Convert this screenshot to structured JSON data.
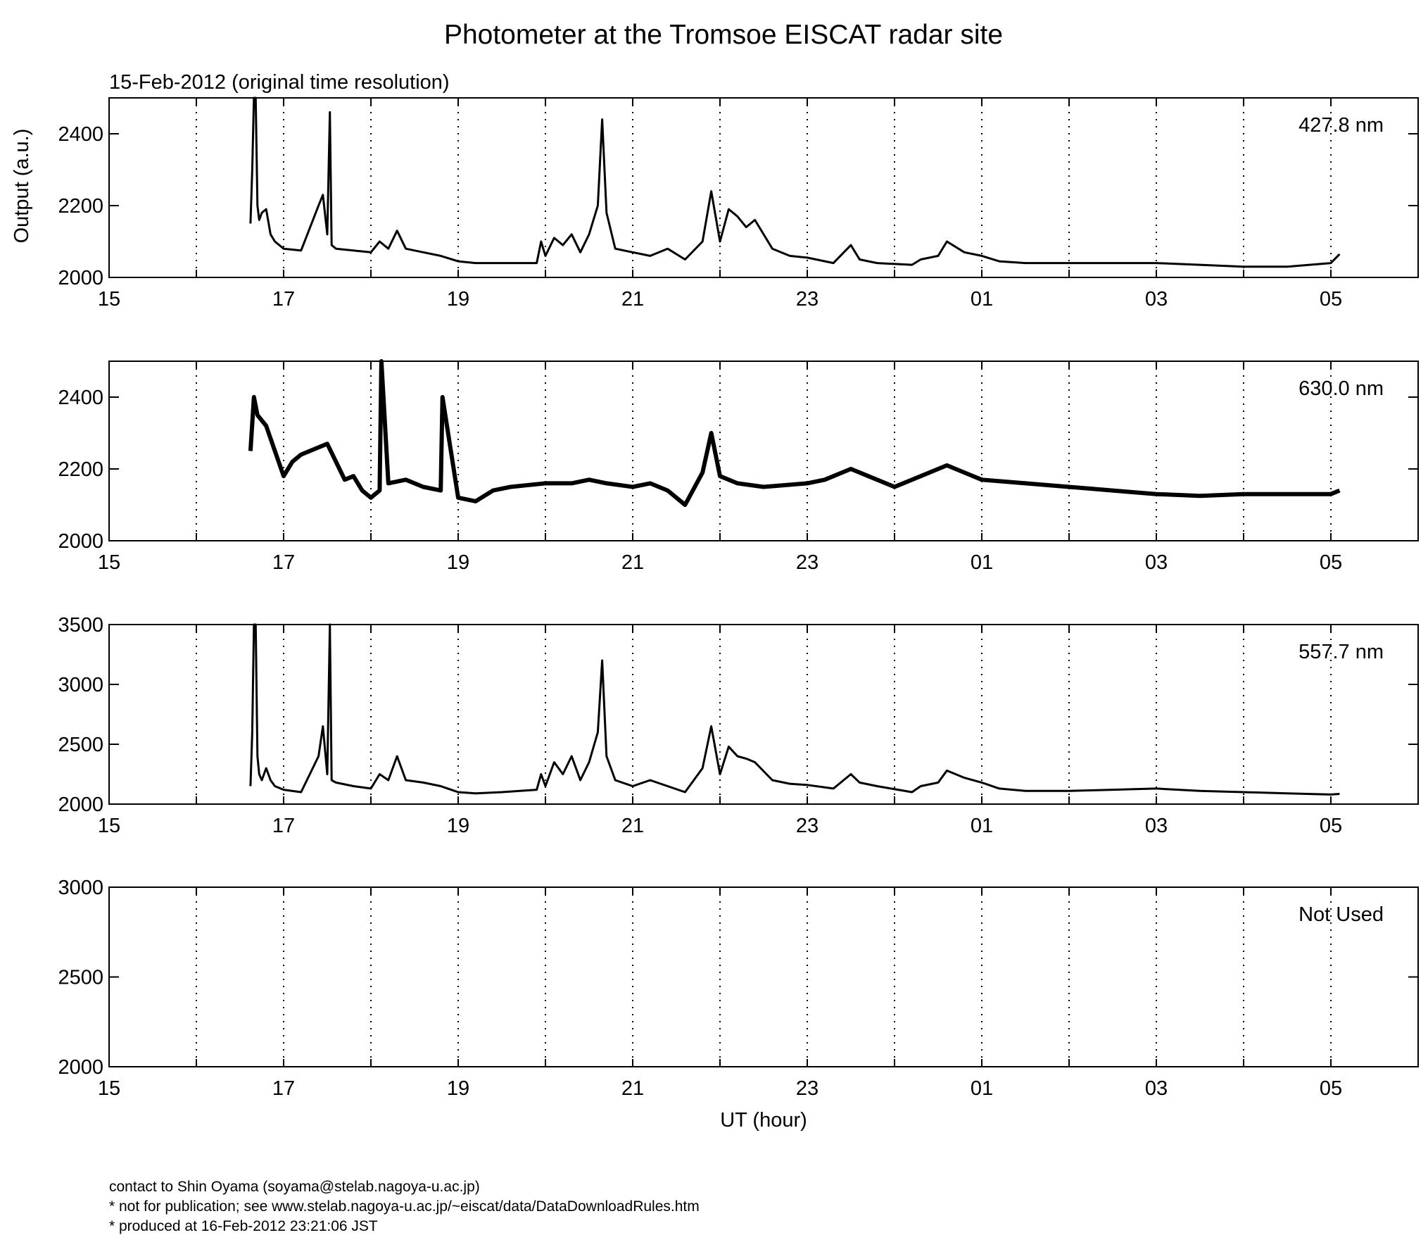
{
  "chart_data": [
    {
      "type": "line",
      "title": "Photometer at the Tromsoe EISCAT radar site",
      "subtitle": "15-Feb-2012 (original time resolution)",
      "ylabel": "Output (a.u.)",
      "xlabel": "",
      "label": "427.8 nm",
      "xlim": [
        15,
        30
      ],
      "ylim": [
        2000,
        2500
      ],
      "yticks": [
        2000,
        2200,
        2400
      ],
      "xtick_labels": [
        "15",
        "17",
        "19",
        "21",
        "23",
        "01",
        "03",
        "05"
      ],
      "grid": "vertical dotted every hour",
      "series": [
        {
          "x": [
            16.62,
            16.64,
            16.66,
            16.68,
            16.7,
            16.72,
            16.75,
            16.8,
            16.85,
            16.9,
            17.0,
            17.2,
            17.4,
            17.45,
            17.5,
            17.53,
            17.55,
            17.6,
            17.8,
            18.0,
            18.1,
            18.2,
            18.3,
            18.4,
            18.6,
            18.8,
            19.0,
            19.2,
            19.5,
            19.9,
            19.95,
            20.0,
            20.1,
            20.2,
            20.3,
            20.4,
            20.5,
            20.6,
            20.65,
            20.7,
            20.8,
            21.0,
            21.2,
            21.4,
            21.6,
            21.8,
            21.9,
            22.0,
            22.1,
            22.2,
            22.3,
            22.4,
            22.6,
            22.8,
            23.0,
            23.3,
            23.5,
            23.6,
            23.8,
            24.2,
            24.3,
            24.5,
            24.6,
            24.8,
            25.0,
            25.2,
            25.5,
            26.0,
            26.5,
            27.0,
            27.5,
            28.0,
            28.5,
            29.0,
            29.1
          ],
          "y": [
            2150,
            2300,
            2500,
            2500,
            2200,
            2160,
            2180,
            2190,
            2120,
            2100,
            2080,
            2075,
            2200,
            2230,
            2120,
            2460,
            2090,
            2080,
            2075,
            2070,
            2100,
            2080,
            2130,
            2080,
            2070,
            2060,
            2045,
            2040,
            2040,
            2040,
            2100,
            2060,
            2110,
            2090,
            2120,
            2070,
            2120,
            2200,
            2440,
            2180,
            2080,
            2070,
            2060,
            2080,
            2050,
            2100,
            2240,
            2100,
            2190,
            2170,
            2140,
            2160,
            2080,
            2060,
            2055,
            2040,
            2090,
            2050,
            2040,
            2035,
            2050,
            2060,
            2100,
            2070,
            2060,
            2045,
            2040,
            2040,
            2040,
            2040,
            2035,
            2030,
            2030,
            2040,
            2065
          ]
        }
      ]
    },
    {
      "type": "line",
      "title": "",
      "xlabel": "",
      "ylabel": "",
      "label": "630.0 nm",
      "xlim": [
        15,
        30
      ],
      "ylim": [
        2000,
        2500
      ],
      "yticks": [
        2000,
        2200,
        2400
      ],
      "xtick_labels": [
        "15",
        "17",
        "19",
        "21",
        "23",
        "01",
        "03",
        "05"
      ],
      "grid": "vertical dotted every hour",
      "series": [
        {
          "x": [
            16.62,
            16.66,
            16.7,
            16.8,
            16.9,
            17.0,
            17.1,
            17.2,
            17.4,
            17.5,
            17.6,
            17.7,
            17.8,
            17.9,
            18.0,
            18.1,
            18.12,
            18.2,
            18.4,
            18.6,
            18.8,
            18.82,
            19.0,
            19.2,
            19.4,
            19.6,
            20.0,
            20.3,
            20.5,
            20.7,
            21.0,
            21.2,
            21.4,
            21.6,
            21.8,
            21.9,
            22.0,
            22.2,
            22.5,
            23.0,
            23.2,
            23.5,
            23.7,
            24.0,
            24.2,
            24.5,
            24.6,
            24.8,
            25.0,
            25.5,
            26.0,
            26.5,
            27.0,
            27.5,
            28.0,
            28.5,
            29.0,
            29.1
          ],
          "y": [
            2250,
            2400,
            2350,
            2320,
            2250,
            2180,
            2220,
            2240,
            2260,
            2270,
            2220,
            2170,
            2180,
            2140,
            2120,
            2140,
            2500,
            2160,
            2170,
            2150,
            2140,
            2400,
            2120,
            2110,
            2140,
            2150,
            2160,
            2160,
            2170,
            2160,
            2150,
            2160,
            2140,
            2100,
            2190,
            2300,
            2180,
            2160,
            2150,
            2160,
            2170,
            2200,
            2180,
            2150,
            2170,
            2200,
            2210,
            2190,
            2170,
            2160,
            2150,
            2140,
            2130,
            2125,
            2130,
            2130,
            2130,
            2140
          ]
        }
      ]
    },
    {
      "type": "line",
      "title": "",
      "xlabel": "",
      "ylabel": "",
      "label": "557.7 nm",
      "xlim": [
        15,
        30
      ],
      "ylim": [
        2000,
        3500
      ],
      "yticks": [
        2000,
        2500,
        3000,
        3500
      ],
      "xtick_labels": [
        "15",
        "17",
        "19",
        "21",
        "23",
        "01",
        "03",
        "05"
      ],
      "grid": "vertical dotted every hour",
      "series": [
        {
          "x": [
            16.62,
            16.64,
            16.66,
            16.68,
            16.7,
            16.72,
            16.75,
            16.8,
            16.85,
            16.9,
            17.0,
            17.2,
            17.4,
            17.45,
            17.5,
            17.53,
            17.55,
            17.6,
            17.8,
            18.0,
            18.1,
            18.2,
            18.3,
            18.4,
            18.6,
            18.8,
            19.0,
            19.2,
            19.5,
            19.9,
            19.95,
            20.0,
            20.1,
            20.2,
            20.3,
            20.4,
            20.5,
            20.6,
            20.65,
            20.7,
            20.8,
            21.0,
            21.2,
            21.4,
            21.6,
            21.8,
            21.9,
            22.0,
            22.1,
            22.2,
            22.3,
            22.4,
            22.6,
            22.8,
            23.0,
            23.3,
            23.5,
            23.6,
            23.8,
            24.2,
            24.3,
            24.5,
            24.6,
            24.8,
            25.0,
            25.2,
            25.5,
            26.0,
            26.5,
            27.0,
            27.5,
            28.0,
            28.5,
            29.0,
            29.1
          ],
          "y": [
            2150,
            2600,
            3500,
            3500,
            2400,
            2250,
            2200,
            2300,
            2200,
            2150,
            2120,
            2100,
            2400,
            2650,
            2250,
            3500,
            2200,
            2180,
            2150,
            2130,
            2250,
            2200,
            2400,
            2200,
            2180,
            2150,
            2100,
            2090,
            2100,
            2120,
            2250,
            2150,
            2350,
            2250,
            2400,
            2200,
            2350,
            2600,
            3200,
            2400,
            2200,
            2150,
            2200,
            2150,
            2100,
            2300,
            2650,
            2250,
            2480,
            2400,
            2380,
            2350,
            2200,
            2170,
            2160,
            2130,
            2250,
            2180,
            2150,
            2100,
            2150,
            2180,
            2280,
            2220,
            2180,
            2130,
            2110,
            2110,
            2120,
            2130,
            2110,
            2100,
            2090,
            2080,
            2085
          ]
        }
      ]
    },
    {
      "type": "line",
      "title": "",
      "xlabel": "UT (hour)",
      "ylabel": "",
      "label": "Not Used",
      "xlim": [
        15,
        30
      ],
      "ylim": [
        2000,
        3000
      ],
      "yticks": [
        2000,
        2500,
        3000
      ],
      "xtick_labels": [
        "15",
        "17",
        "19",
        "21",
        "23",
        "01",
        "03",
        "05"
      ],
      "grid": "vertical dotted every hour",
      "series": []
    }
  ],
  "footer": {
    "line1": "contact to Shin Oyama (soyama@stelab.nagoya-u.ac.jp)",
    "line2": "* not for publication; see www.stelab.nagoya-u.ac.jp/~eiscat/data/DataDownloadRules.htm",
    "line3": "* produced at 16-Feb-2012 23:21:06 JST"
  },
  "colors": {
    "line": "#000000",
    "axes": "#000000",
    "background": "#ffffff"
  }
}
